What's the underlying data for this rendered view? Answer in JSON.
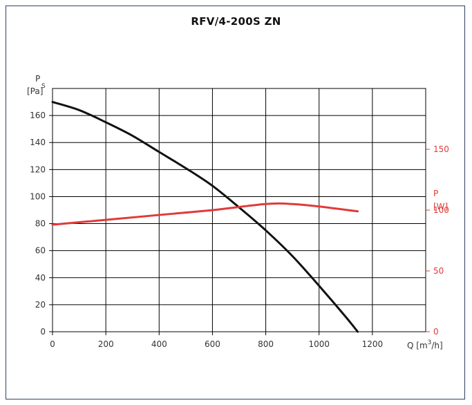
{
  "chart_data": {
    "type": "line",
    "title": "RFV/4-200S ZN",
    "xlabel": "Q [m3/h]",
    "ylabel_left": "Ps [Pa]",
    "ylabel_right": "P [W]",
    "xlim": [
      0,
      1400
    ],
    "ylim_left": [
      0,
      180
    ],
    "ylim_right": [
      0,
      200
    ],
    "x_ticks": [
      0,
      200,
      400,
      600,
      800,
      1000,
      1200
    ],
    "y_ticks_left": [
      0,
      20,
      40,
      60,
      80,
      100,
      120,
      140,
      160
    ],
    "y_ticks_right": [
      0,
      50,
      100,
      150
    ],
    "grid": true,
    "colors": {
      "pressure": "#111111",
      "power": "#e03a3a",
      "frame": "#2e3f63"
    },
    "series": [
      {
        "axis": "left",
        "x": [
          0,
          100,
          200,
          300,
          400,
          500,
          600,
          700,
          800,
          900,
          1000,
          1100,
          1145
        ],
        "values": [
          170,
          164,
          155,
          145,
          133,
          121,
          108,
          92,
          75,
          56,
          34,
          11,
          0
        ]
      },
      {
        "axis": "right",
        "x": [
          0,
          200,
          400,
          600,
          800,
          900,
          1000,
          1145
        ],
        "values": [
          88,
          92,
          96,
          100,
          105,
          105,
          103,
          99
        ]
      }
    ]
  }
}
